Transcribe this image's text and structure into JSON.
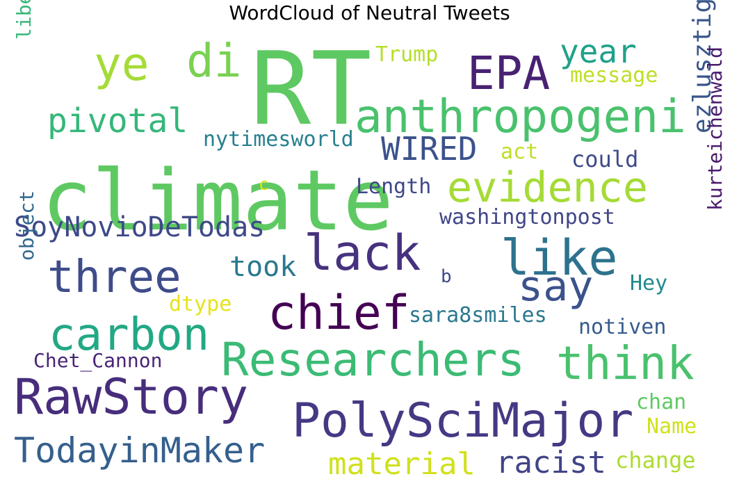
{
  "title": "WordCloud of Neutral Tweets",
  "words": [
    {
      "text": "RT",
      "color": "#5ec962"
    },
    {
      "text": "climate",
      "color": "#5ec962"
    },
    {
      "text": "anthropogeni",
      "color": "#4ac16d"
    },
    {
      "text": "evidence",
      "color": "#a5db36"
    },
    {
      "text": "Researchers",
      "color": "#3bbb75"
    },
    {
      "text": "PolySciMajor",
      "color": "#443983"
    },
    {
      "text": "RawStory",
      "color": "#472d7b"
    },
    {
      "text": "three",
      "color": "#3e4c8a"
    },
    {
      "text": "lack",
      "color": "#46327e"
    },
    {
      "text": "chief",
      "color": "#440154"
    },
    {
      "text": "carbon",
      "color": "#22a884"
    },
    {
      "text": "think",
      "color": "#4ac16d"
    },
    {
      "text": "like",
      "color": "#2c728e"
    },
    {
      "text": "say",
      "color": "#3b528b"
    },
    {
      "text": "EPA",
      "color": "#482173"
    },
    {
      "text": "ye",
      "color": "#a5db36"
    },
    {
      "text": "di",
      "color": "#7ad151"
    },
    {
      "text": "year",
      "color": "#1fa188"
    },
    {
      "text": "pivotal",
      "color": "#35b779"
    },
    {
      "text": "WIRED",
      "color": "#3b528b"
    },
    {
      "text": "SoyNovioDeTodas",
      "color": "#3e4989"
    },
    {
      "text": "TodayinMaker",
      "color": "#355f8d"
    },
    {
      "text": "material",
      "color": "#d0e11c"
    },
    {
      "text": "racist",
      "color": "#414487"
    },
    {
      "text": "took",
      "color": "#2a788e"
    },
    {
      "text": "ezlusztig",
      "color": "#39568c"
    },
    {
      "text": "kurteichenwald",
      "color": "#481a6c"
    },
    {
      "text": "washingtonpost",
      "color": "#404688"
    },
    {
      "text": "Length",
      "color": "#3f4788"
    },
    {
      "text": "could",
      "color": "#3e4a89"
    },
    {
      "text": "nytimesworld",
      "color": "#27808e"
    },
    {
      "text": "sara8smiles",
      "color": "#2a788e"
    },
    {
      "text": "Chet_Cannon",
      "color": "#482576"
    },
    {
      "text": "Trump",
      "color": "#b5de2b"
    },
    {
      "text": "message",
      "color": "#bddf26"
    },
    {
      "text": "liberals",
      "color": "#35b779"
    },
    {
      "text": "object",
      "color": "#31688e"
    },
    {
      "text": "dtype",
      "color": "#e5e419"
    },
    {
      "text": "act",
      "color": "#bddf26"
    },
    {
      "text": "c",
      "color": "#dde318"
    },
    {
      "text": "b",
      "color": "#3e4989"
    },
    {
      "text": "Hey",
      "color": "#23898e"
    },
    {
      "text": "notiven",
      "color": "#375b8d"
    },
    {
      "text": "chan",
      "color": "#5ec962"
    },
    {
      "text": "Name",
      "color": "#d0e11c"
    },
    {
      "text": "change",
      "color": "#addc30"
    }
  ]
}
